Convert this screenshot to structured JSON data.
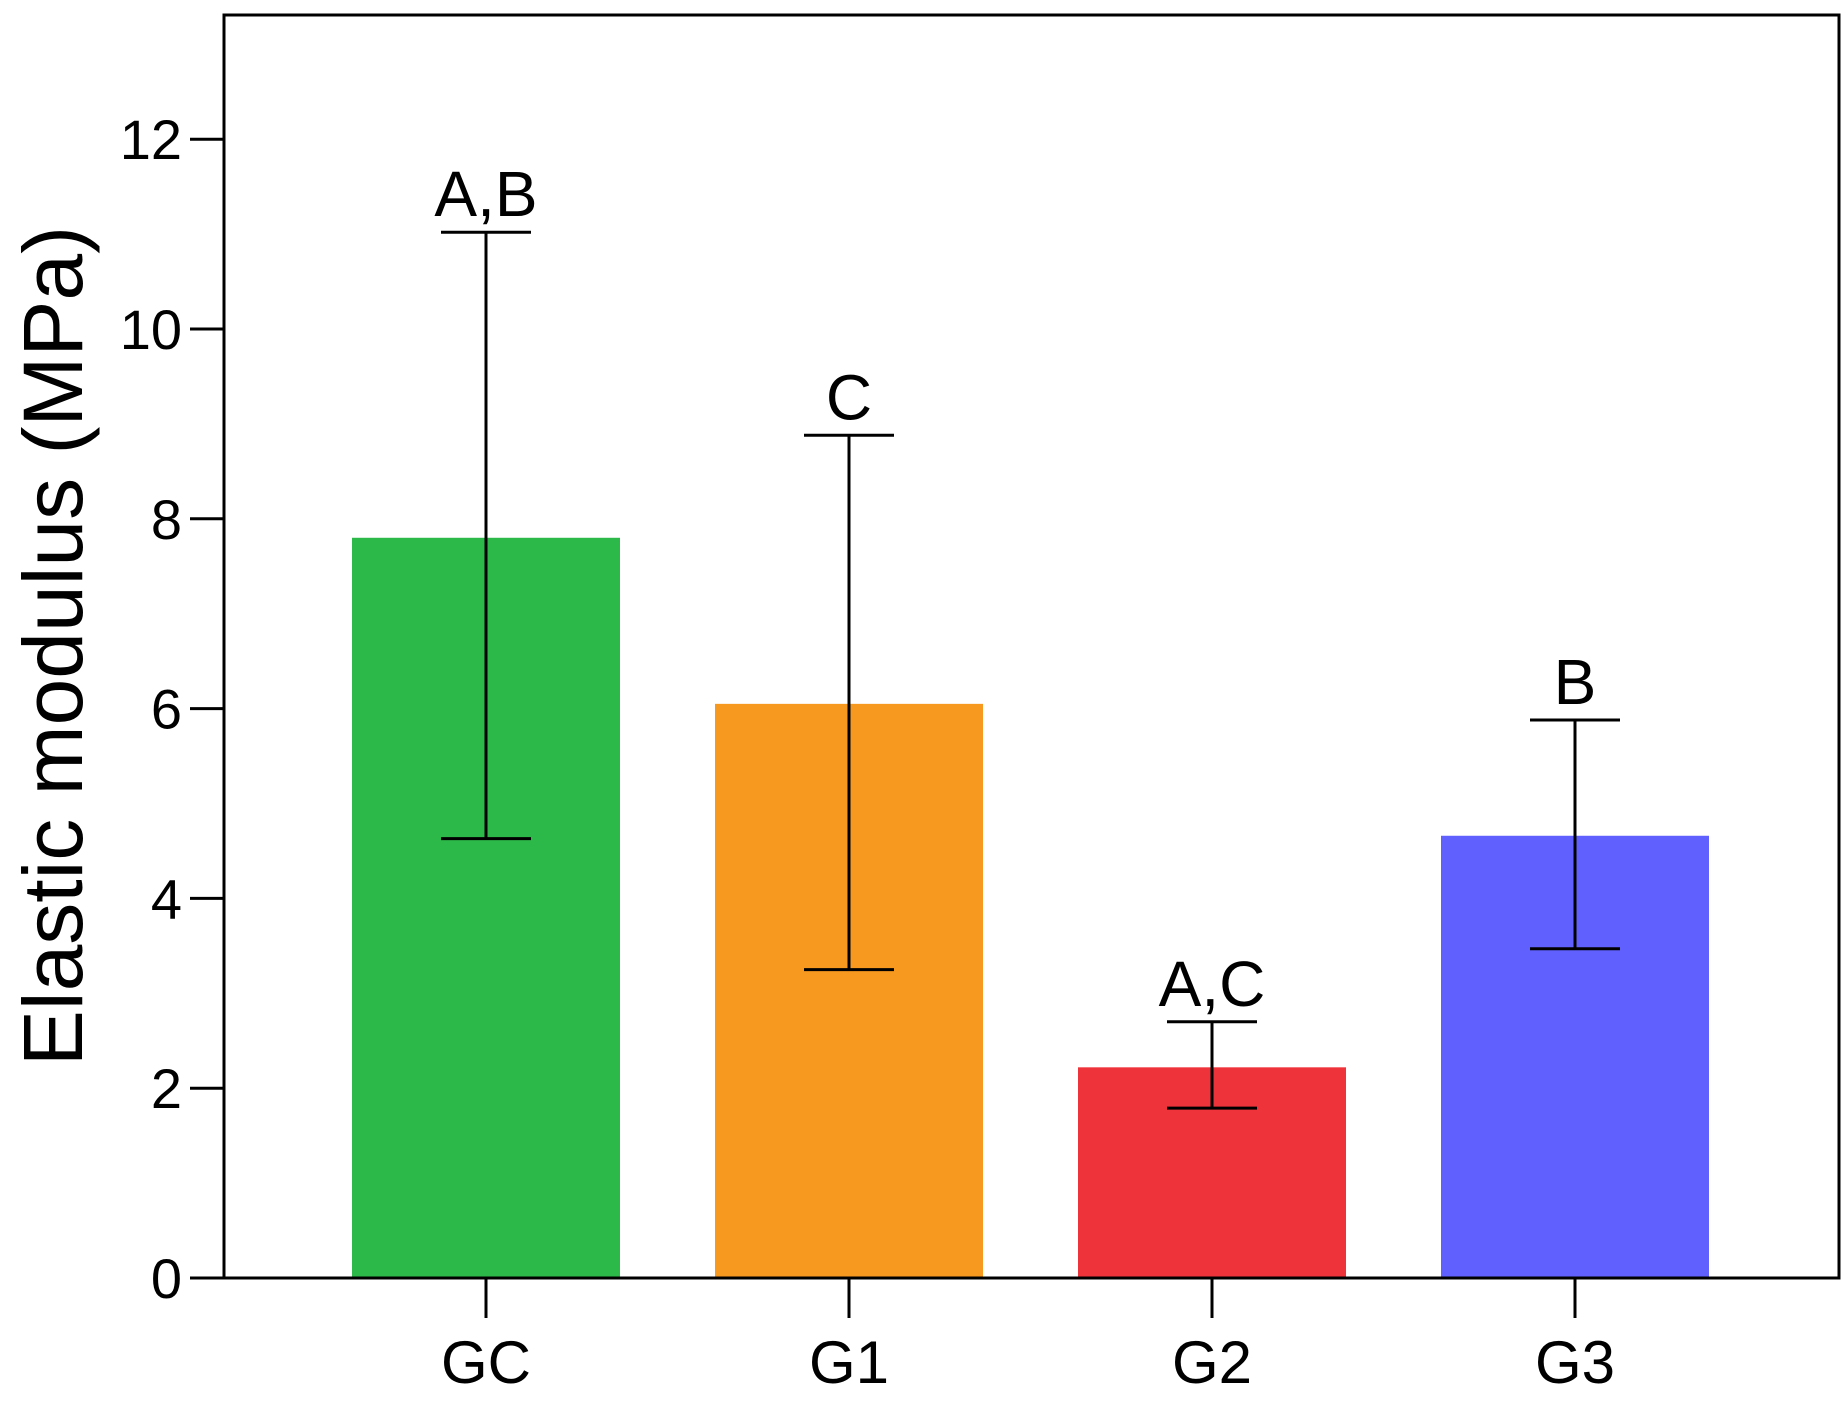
{
  "chart_data": {
    "type": "bar",
    "title": "",
    "xlabel": "",
    "ylabel": "Elastic modulus (MPa)",
    "categories": [
      "GC",
      "G1",
      "G2",
      "G3"
    ],
    "values": [
      7.8,
      6.05,
      2.22,
      4.66
    ],
    "error_upper": [
      11.02,
      8.88,
      2.7,
      5.88
    ],
    "error_lower": [
      4.63,
      3.25,
      1.79,
      3.47
    ],
    "significance_labels": [
      "A,B",
      "C",
      "A,C",
      "B"
    ],
    "colors": [
      "#2db84a",
      "#f7991f",
      "#ef333a",
      "#6060ff"
    ],
    "ylim": [
      0,
      13.3
    ],
    "yticks": [
      0,
      2,
      4,
      6,
      8,
      10,
      12
    ],
    "ytick_labels": [
      "0",
      "2",
      "4",
      "6",
      "8",
      "10",
      "12"
    ],
    "grid": false,
    "legend": "none"
  }
}
